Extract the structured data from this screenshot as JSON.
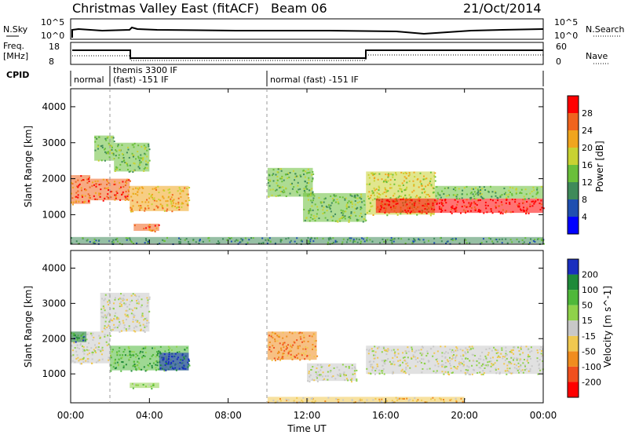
{
  "header": {
    "title": "Christmas Valley East (fitACF)",
    "beam": "Beam 06",
    "date": "21/Oct/2014"
  },
  "nsky_panel": {
    "left_label": "N.Sky",
    "right_label": "N.Search",
    "left_ticks": [
      "10^5",
      "10^0"
    ],
    "right_ticks": [
      "10^5",
      "10^0"
    ]
  },
  "freq_panel": {
    "left_label_1": "Freq.",
    "left_label_2": "[MHz]",
    "right_label": "Nave",
    "left_ticks": [
      "18",
      "8"
    ],
    "right_ticks": [
      "60",
      "0"
    ]
  },
  "cpid": {
    "label": "CPID",
    "segments": [
      {
        "text_1": "normal",
        "text_2": "",
        "start_hour": 0
      },
      {
        "text_1": "themis 3300 IF",
        "text_2": "(fast) -151 IF",
        "start_hour": 1.8
      },
      {
        "text_1": "normal (fast) -151 IF",
        "text_2": "",
        "start_hour": 10
      }
    ]
  },
  "power_panel": {
    "ylabel": "Slant Range [km]",
    "yticks": [
      "1000",
      "2000",
      "3000",
      "4000"
    ],
    "colorbar_label": "Power [dB]",
    "colorbar_ticks": [
      "4",
      "8",
      "12",
      "16",
      "20",
      "24",
      "28"
    ],
    "colors": [
      "#0000ff",
      "#1f4fb0",
      "#3f8a5a",
      "#6abf3a",
      "#c8d232",
      "#f0a51e",
      "#f0641e",
      "#ff0000"
    ]
  },
  "velocity_panel": {
    "ylabel": "Slant Range [km]",
    "yticks": [
      "1000",
      "2000",
      "3000",
      "4000"
    ],
    "colorbar_label": "Velocity [m s^-1]",
    "colorbar_ticks": [
      "200",
      "100",
      "50",
      "15",
      "-15",
      "-50",
      "-100",
      "-200"
    ],
    "colors": [
      "#1a2fbf",
      "#1f8a3a",
      "#4fb83a",
      "#8fd24a",
      "#c8c8c8",
      "#f0c850",
      "#f08c1e",
      "#f0501e",
      "#ff0000"
    ]
  },
  "x_axis": {
    "label": "Time UT",
    "ticks": [
      "00:00",
      "04:00",
      "08:00",
      "12:00",
      "16:00",
      "20:00",
      "00:00"
    ]
  },
  "chart_data": {
    "type": "heatmap",
    "title": "Christmas Valley East (fitACF)",
    "xlabel": "Time UT",
    "ylabel": "Slant Range [km]",
    "xlim": [
      0,
      24
    ],
    "ylim": [
      180,
      4500
    ],
    "power_regions": [
      {
        "t0": 0.0,
        "t1": 1.0,
        "r0": 1300,
        "r1": 2100,
        "level": 6
      },
      {
        "t0": 1.0,
        "t1": 3.0,
        "r0": 1400,
        "r1": 2000,
        "level": 6
      },
      {
        "t0": 3.0,
        "t1": 6.0,
        "r0": 1100,
        "r1": 1800,
        "level": 5
      },
      {
        "t0": 1.2,
        "t1": 2.2,
        "r0": 2500,
        "r1": 3200,
        "level": 3
      },
      {
        "t0": 2.2,
        "t1": 4.0,
        "r0": 2200,
        "r1": 3000,
        "level": 3
      },
      {
        "t0": 3.2,
        "t1": 4.5,
        "r0": 550,
        "r1": 750,
        "level": 6
      },
      {
        "t0": 10.0,
        "t1": 12.3,
        "r0": 1500,
        "r1": 2300,
        "level": 3
      },
      {
        "t0": 11.8,
        "t1": 15.0,
        "r0": 800,
        "r1": 1600,
        "level": 3
      },
      {
        "t0": 15.0,
        "t1": 18.5,
        "r0": 1000,
        "r1": 2200,
        "level": 4
      },
      {
        "t0": 15.5,
        "t1": 24.0,
        "r0": 1050,
        "r1": 1450,
        "level": 7
      },
      {
        "t0": 18.5,
        "t1": 24.0,
        "r0": 1450,
        "r1": 1800,
        "level": 3
      },
      {
        "t0": 0.0,
        "t1": 24.0,
        "r0": 200,
        "r1": 380,
        "level": 2
      }
    ],
    "velocity_regions": [
      {
        "t0": 0.0,
        "t1": 2.0,
        "r0": 1300,
        "r1": 2200,
        "level": 4
      },
      {
        "t0": 0.0,
        "t1": 0.8,
        "r0": 1900,
        "r1": 2200,
        "level": 1
      },
      {
        "t0": 1.5,
        "t1": 4.0,
        "r0": 2200,
        "r1": 3300,
        "level": 4
      },
      {
        "t0": 2.0,
        "t1": 6.0,
        "r0": 1100,
        "r1": 1800,
        "level": 2
      },
      {
        "t0": 4.5,
        "t1": 6.0,
        "r0": 1100,
        "r1": 1600,
        "level": 0
      },
      {
        "t0": 3.0,
        "t1": 4.5,
        "r0": 600,
        "r1": 750,
        "level": 3
      },
      {
        "t0": 10.0,
        "t1": 12.5,
        "r0": 1400,
        "r1": 2200,
        "level": 6
      },
      {
        "t0": 12.0,
        "t1": 14.5,
        "r0": 800,
        "r1": 1300,
        "level": 4
      },
      {
        "t0": 15.0,
        "t1": 24.0,
        "r0": 1000,
        "r1": 1800,
        "level": 4
      },
      {
        "t0": 10.0,
        "t1": 20.0,
        "r0": 200,
        "r1": 350,
        "level": 5
      }
    ]
  }
}
